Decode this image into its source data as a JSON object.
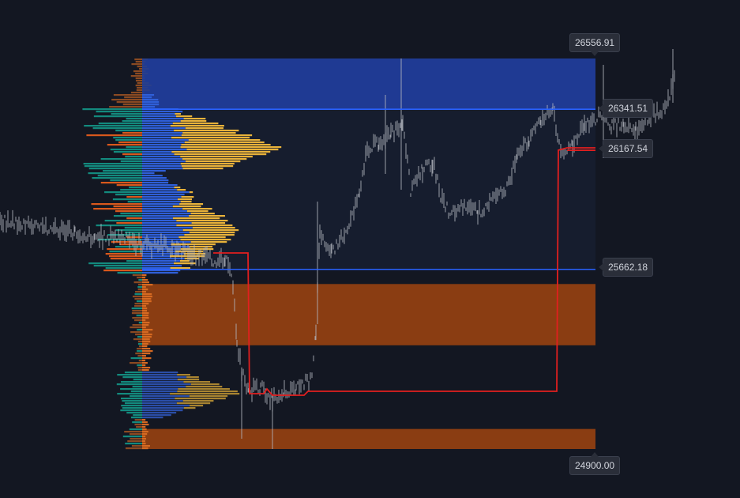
{
  "colors": {
    "background": "#131722",
    "value_area_bg": "#161d2e",
    "upper_zone": "#1f3a93",
    "lower_zone": "#8a3d12",
    "level_line": "#2962ff",
    "vwap_line": "#e21f1f",
    "candle": "#b2b5be",
    "profile_up_blue": "#2f5fd8",
    "profile_up_gold": "#e8b23a",
    "profile_down_teal": "#138a7e",
    "profile_down_orange": "#d9581c",
    "profile_low_brown": "#8a4a22"
  },
  "chart_data": {
    "type": "candlestick-volume-profile",
    "price_axis": {
      "min": 24900.0,
      "max": 26556.91
    },
    "labels": [
      {
        "name": "top-boundary",
        "value": "26556.91"
      },
      {
        "name": "upper-level",
        "value": "26341.51"
      },
      {
        "name": "vwap-level",
        "value": "26167.54"
      },
      {
        "name": "lower-level",
        "value": "25662.18"
      },
      {
        "name": "bottom-boundary",
        "value": "24900.00"
      }
    ],
    "zones": [
      {
        "name": "upper-zone",
        "from": 26341.51,
        "to": 26556.91
      },
      {
        "name": "mid-zone",
        "from": 25662.18,
        "to": 26341.51
      },
      {
        "name": "lower-zone-1",
        "from": 25340,
        "to": 25600
      },
      {
        "name": "lower-zone-2",
        "from": 24900.0,
        "to": 24985
      }
    ],
    "levels": [
      26341.51,
      25662.18
    ],
    "vwap_level": 26167.54,
    "grid": false,
    "legend": "none"
  }
}
